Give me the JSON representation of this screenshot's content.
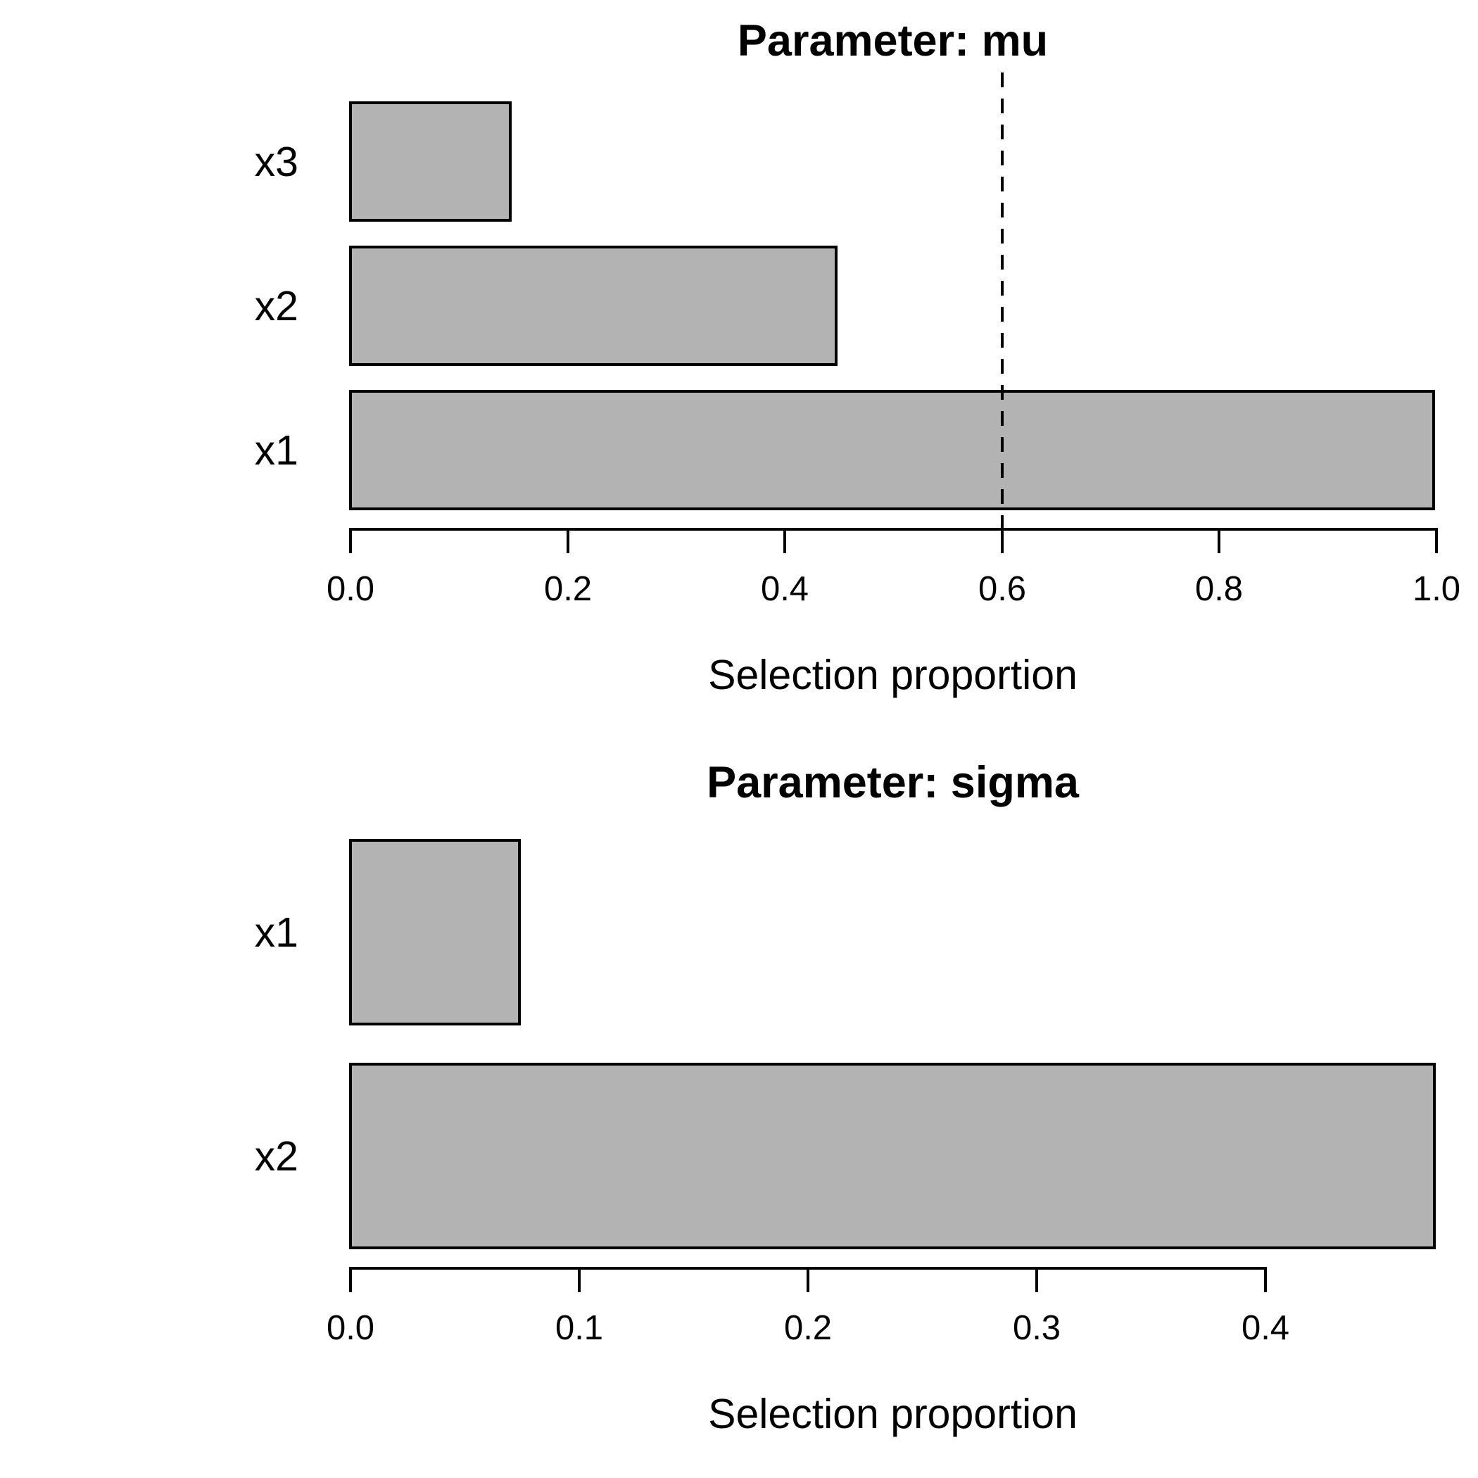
{
  "figure": {
    "background_color": "#ffffff",
    "text_color": "#000000"
  },
  "chart_data": [
    {
      "type": "bar",
      "orientation": "horizontal",
      "title": "Parameter: mu",
      "xlabel": "Selection proportion",
      "bar_order_note": "bottom_to_top",
      "categories": [
        "x1",
        "x2",
        "x3"
      ],
      "values": [
        1.0,
        0.45,
        0.15
      ],
      "xlim": [
        0.0,
        1.0
      ],
      "xticks": [
        0.0,
        0.2,
        0.4,
        0.6,
        0.8,
        1.0
      ],
      "xtick_labels": [
        "0.0",
        "0.2",
        "0.4",
        "0.6",
        "0.8",
        "1.0"
      ],
      "reference_line_x": 0.6,
      "reference_line_style": "dashed",
      "grid": false,
      "legend": false,
      "bar_fill_color": "#b3b3b3",
      "bar_border_color": "#000000"
    },
    {
      "type": "bar",
      "orientation": "horizontal",
      "title": "Parameter: sigma",
      "xlabel": "Selection proportion",
      "bar_order_note": "bottom_to_top",
      "categories": [
        "x2",
        "x1"
      ],
      "values": [
        0.475,
        0.075
      ],
      "xlim": [
        0.0,
        0.4
      ],
      "xticks": [
        0.0,
        0.1,
        0.2,
        0.3,
        0.4
      ],
      "xtick_labels": [
        "0.0",
        "0.1",
        "0.2",
        "0.3",
        "0.4"
      ],
      "reference_line_x": null,
      "grid": false,
      "legend": false,
      "bar_fill_color": "#b3b3b3",
      "bar_border_color": "#000000"
    }
  ]
}
